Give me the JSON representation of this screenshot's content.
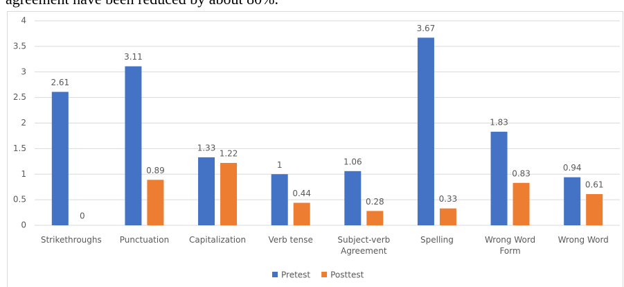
{
  "text": "agreement have been reduced by about 80%.",
  "chart_data": {
    "type": "bar",
    "categories": [
      "Strikethroughs",
      "Punctuation",
      "Capitalization",
      "Verb tense",
      "Subject-verb Agreement",
      "Spelling",
      "Wrong Word Form",
      "Wrong Word"
    ],
    "series": [
      {
        "name": "Pretest",
        "color": "#4472c4",
        "values": [
          2.61,
          3.11,
          1.33,
          1,
          1.06,
          3.67,
          1.83,
          0.94
        ]
      },
      {
        "name": "Posttest",
        "color": "#ed7d31",
        "values": [
          0,
          0.89,
          1.22,
          0.44,
          0.28,
          0.33,
          0.83,
          0.61
        ]
      }
    ],
    "ylim": [
      0,
      4
    ],
    "yticks": [
      0,
      0.5,
      1,
      1.5,
      2,
      2.5,
      3,
      3.5,
      4
    ],
    "grid": true,
    "legend": "bottom"
  }
}
